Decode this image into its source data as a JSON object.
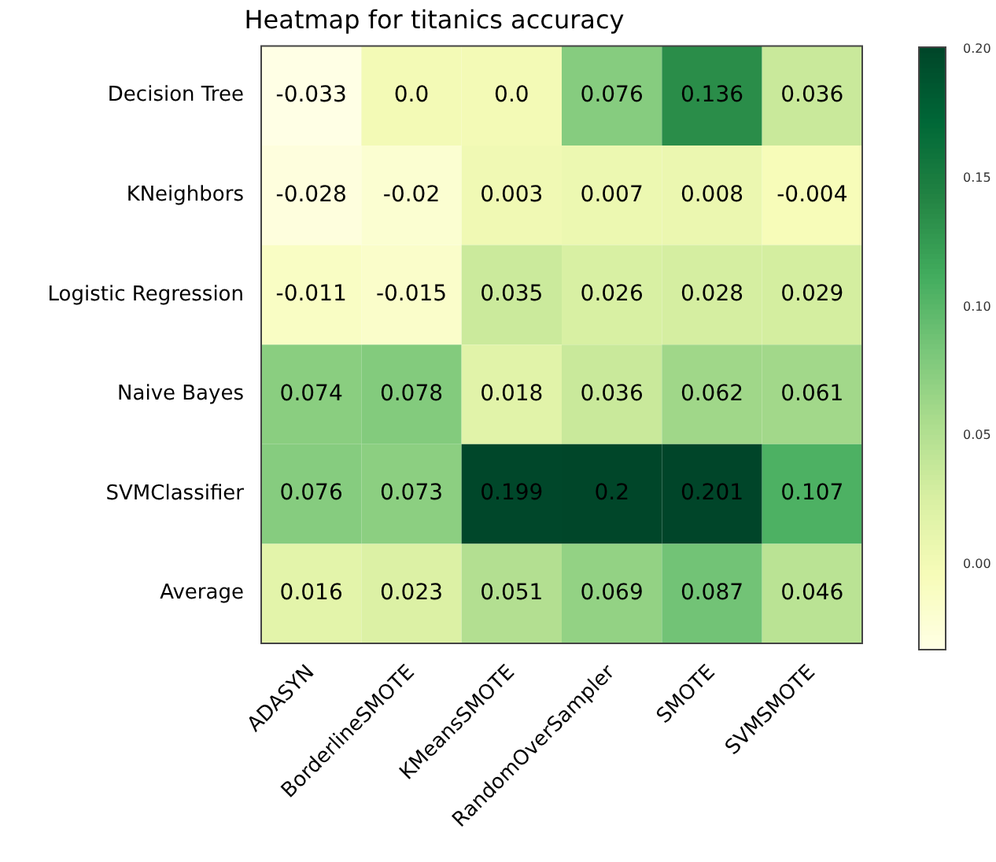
{
  "chart_data": {
    "type": "heatmap",
    "title": "Heatmap for titanics accuracy",
    "categories": [
      "ADASYN",
      "BorderlineSMOTE",
      "KMeansSMOTE",
      "RandomOverSampler",
      "SMOTE",
      "SVMSMOTE"
    ],
    "y_categories": [
      "Decision Tree",
      "KNeighbors",
      "Logistic Regression",
      "Naive Bayes",
      "SVMClassifier",
      "Average"
    ],
    "cells": [
      [
        -0.033,
        0.0,
        0.0,
        0.076,
        0.136,
        0.036
      ],
      [
        -0.028,
        -0.02,
        0.003,
        0.007,
        0.008,
        -0.004
      ],
      [
        -0.011,
        -0.015,
        0.035,
        0.026,
        0.028,
        0.029
      ],
      [
        0.074,
        0.078,
        0.018,
        0.036,
        0.062,
        0.061
      ],
      [
        0.076,
        0.073,
        0.199,
        0.2,
        0.201,
        0.107
      ],
      [
        0.016,
        0.023,
        0.051,
        0.069,
        0.087,
        0.046
      ]
    ],
    "cell_labels": [
      [
        "-0.033",
        "0.0",
        "0.0",
        "0.076",
        "0.136",
        "0.036"
      ],
      [
        "-0.028",
        "-0.02",
        "0.003",
        "0.007",
        "0.008",
        "-0.004"
      ],
      [
        "-0.011",
        "-0.015",
        "0.035",
        "0.026",
        "0.028",
        "0.029"
      ],
      [
        "0.074",
        "0.078",
        "0.018",
        "0.036",
        "0.062",
        "0.061"
      ],
      [
        "0.076",
        "0.073",
        "0.199",
        "0.2",
        "0.201",
        "0.107"
      ],
      [
        "0.016",
        "0.023",
        "0.051",
        "0.069",
        "0.087",
        "0.046"
      ]
    ],
    "clim": [
      -0.033,
      0.201
    ],
    "cticks": [
      {
        "value": 0,
        "label": "0.00"
      },
      {
        "value": 0.05,
        "label": "0.05"
      },
      {
        "value": 0.1,
        "label": "0.10"
      },
      {
        "value": 0.15,
        "label": "0.15"
      },
      {
        "value": 0.2,
        "label": "0.20"
      }
    ]
  }
}
